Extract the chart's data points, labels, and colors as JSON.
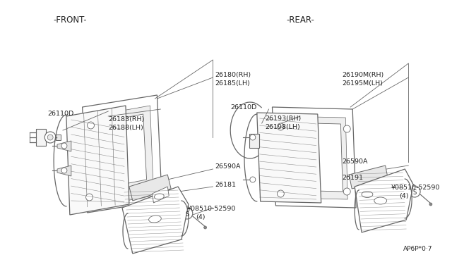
{
  "bg_color": "#ffffff",
  "line_color": "#666666",
  "text_color": "#222222",
  "front_label": "-FRONT-",
  "rear_label": "-REAR-",
  "watermark": "AP6P*0·7",
  "fs_label": 7.5,
  "fs_part": 6.8
}
